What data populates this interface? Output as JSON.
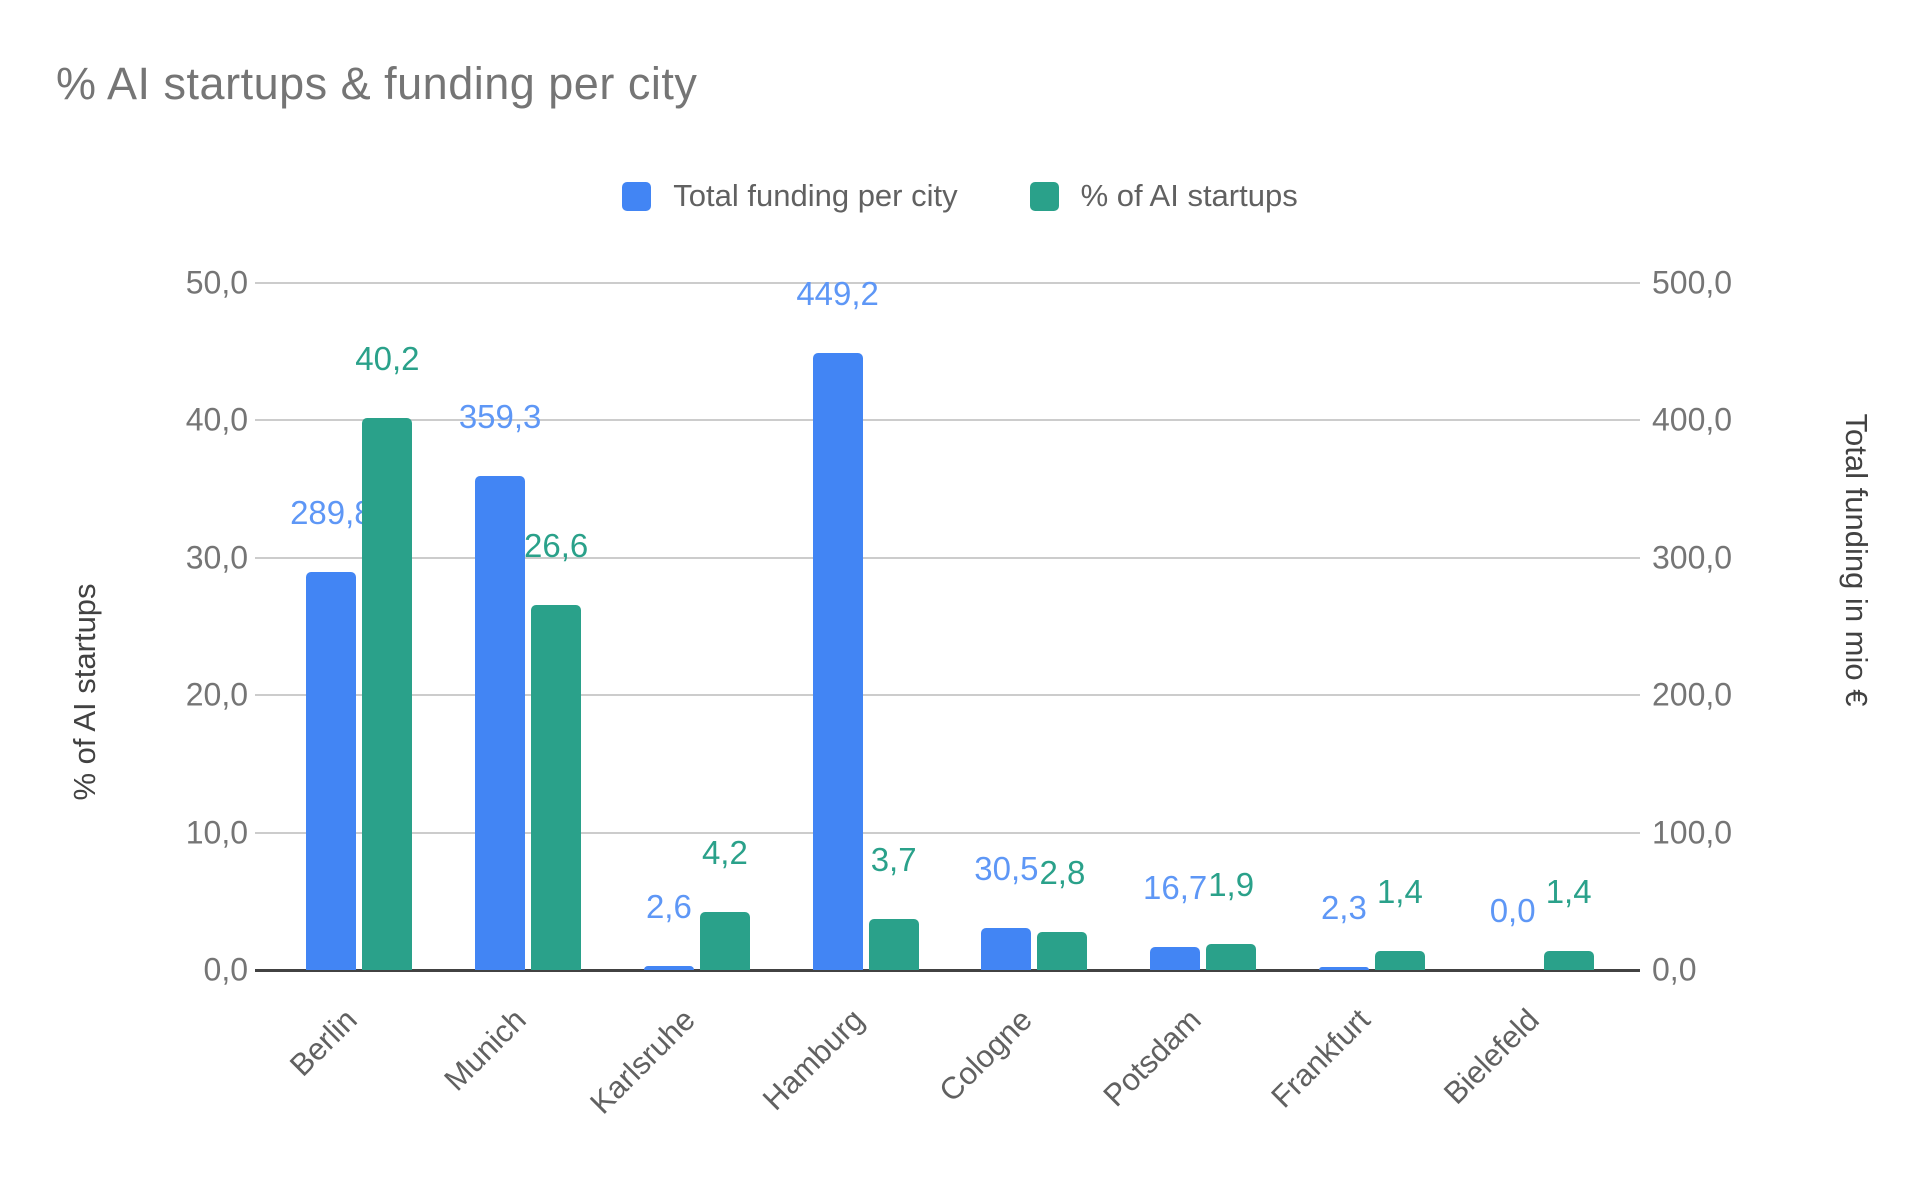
{
  "title": "% AI startups & funding per city",
  "legend": {
    "items": [
      {
        "label": "Total funding per city",
        "color": "#4285f4"
      },
      {
        "label": "% of AI startups",
        "color": "#2aa18a"
      }
    ]
  },
  "colors": {
    "funding_bar": "#4285f4",
    "funding_label": "#5e97f6",
    "startups_bar": "#2aa18a",
    "startups_label": "#2aa18a",
    "gridline": "#cccccc",
    "axis_line": "#424242",
    "title_text": "#757575",
    "tick_text": "#757575"
  },
  "chart_data": {
    "type": "bar",
    "title": "% AI startups & funding per city",
    "legend_position": "top",
    "grid": true,
    "categories": [
      "Berlin",
      "Munich",
      "Karlsruhe",
      "Hamburg",
      "Cologne",
      "Potsdam",
      "Frankfurt",
      "Bielefeld"
    ],
    "series": [
      {
        "name": "Total funding per city",
        "axis": "right",
        "color": "#4285f4",
        "label_color": "#5e97f6",
        "values": [
          289.8,
          359.3,
          2.6,
          449.2,
          30.5,
          16.7,
          2.3,
          0.0
        ],
        "labels": [
          "289,8",
          "359,3",
          "2,6",
          "449,2",
          "30,5",
          "16,7",
          "2,3",
          "0,0"
        ]
      },
      {
        "name": "% of AI startups",
        "axis": "left",
        "color": "#2aa18a",
        "label_color": "#2aa18a",
        "values": [
          40.2,
          26.6,
          4.2,
          3.7,
          2.8,
          1.9,
          1.4,
          1.4
        ],
        "labels": [
          "40,2",
          "26,6",
          "4,2",
          "3,7",
          "2,8",
          "1,9",
          "1,4",
          "1,4"
        ]
      }
    ],
    "left_axis": {
      "title": "% of AI startups",
      "min": 0,
      "max": 50,
      "tick_values": [
        0,
        10,
        20,
        30,
        40,
        50
      ],
      "tick_labels": [
        "0,0",
        "10,0",
        "20,0",
        "30,0",
        "40,0",
        "50,0"
      ]
    },
    "right_axis": {
      "title": "Total funding in mio €",
      "min": 0,
      "max": 500,
      "tick_values": [
        0,
        100,
        200,
        300,
        400,
        500
      ],
      "tick_labels": [
        "0,0",
        "100,0",
        "200,0",
        "300,0",
        "400,0",
        "500,0"
      ]
    }
  }
}
